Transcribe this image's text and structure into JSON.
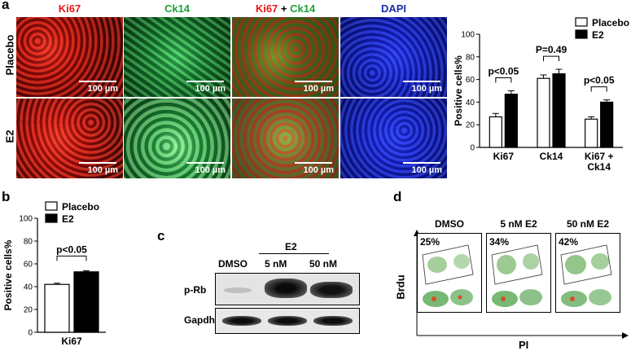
{
  "panel_a": {
    "letter": "a",
    "columns": [
      {
        "label": "Ki67",
        "color": "#e8161b"
      },
      {
        "label": "Ck14",
        "color": "#19a337"
      },
      {
        "label_red": "Ki67",
        "label_plus": " + ",
        "label_green": "Ck14"
      },
      {
        "label": "DAPI",
        "color": "#1a2ea8"
      }
    ],
    "rows": [
      "Placebo",
      "E2"
    ],
    "scale_bar": "100 µm"
  },
  "chart_data": [
    {
      "type": "bar",
      "categories": [
        "Ki67",
        "Ck14",
        "Ki67 +\nCk14"
      ],
      "category_lines": [
        [
          "Ki67"
        ],
        [
          "Ck14"
        ],
        [
          "Ki67 +",
          "Ck14"
        ]
      ],
      "series": [
        {
          "name": "Placebo",
          "values": [
            27,
            61,
            25
          ],
          "errors": [
            3,
            3,
            2
          ],
          "color": "#ffffff"
        },
        {
          "name": "E2",
          "values": [
            47,
            65,
            40
          ],
          "errors": [
            3,
            4,
            2
          ],
          "color": "#000000"
        }
      ],
      "ylabel": "Positive cells%",
      "ylim": [
        0,
        100
      ],
      "yticks": [
        "0",
        "20",
        "40",
        "60",
        "80",
        "100"
      ],
      "annotations": [
        "p<0.05",
        "P=0.49",
        "p<0.05"
      ],
      "legend": "top-right"
    },
    {
      "type": "bar",
      "categories": [
        "Ki67"
      ],
      "series": [
        {
          "name": "Placebo",
          "values": [
            42
          ],
          "errors": [
            1
          ],
          "color": "#ffffff"
        },
        {
          "name": "E2",
          "values": [
            53
          ],
          "errors": [
            1
          ],
          "color": "#000000"
        }
      ],
      "ylabel": "Positive cells%",
      "ylim": [
        0,
        100
      ],
      "yticks": [
        "0",
        "20",
        "40",
        "60",
        "80",
        "100"
      ],
      "annotations": [
        "p<0.05"
      ],
      "legend": "top-right"
    }
  ],
  "panel_b": {
    "letter": "b"
  },
  "panel_c": {
    "letter": "c",
    "group_label": "E2",
    "lanes": [
      "DMSO",
      "5 nM",
      "50 nM"
    ],
    "blots": [
      "p-Rb",
      "Gapdh"
    ]
  },
  "panel_d": {
    "letter": "d",
    "conditions": [
      "DMSO",
      "5 nM E2",
      "50 nM E2"
    ],
    "percents": [
      "25%",
      "34%",
      "42%"
    ],
    "yaxis": "Brdu",
    "xaxis": "PI"
  }
}
